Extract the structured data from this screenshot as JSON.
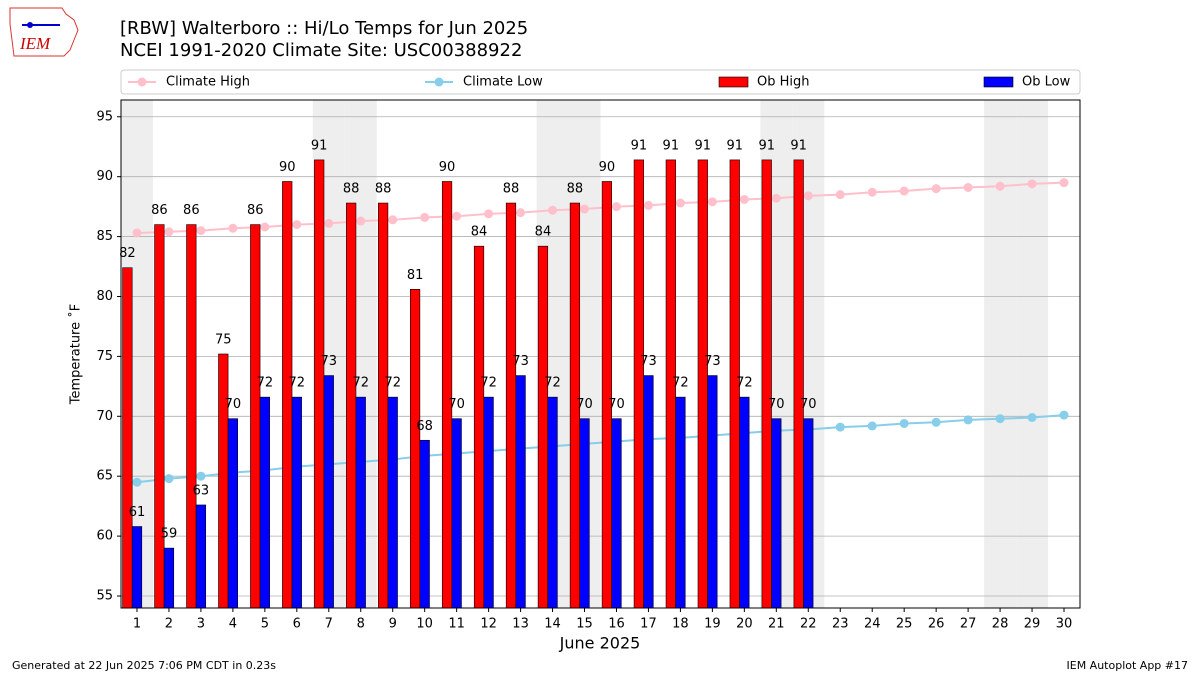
{
  "chart_data": {
    "type": "bar",
    "title": "[RBW] Walterboro :: Hi/Lo Temps for Jun 2025",
    "subtitle": "NCEI 1991-2020 Climate Site: USC00388922",
    "x_label": "June 2025",
    "y_label": "Temperature ˚F",
    "footer_left": "Generated at 22 Jun 2025 7:06 PM CDT in 0.23s",
    "footer_right": "IEM Autoplot App #17",
    "logo_text": "IEM",
    "x": [
      1,
      2,
      3,
      4,
      5,
      6,
      7,
      8,
      9,
      10,
      11,
      12,
      13,
      14,
      15,
      16,
      17,
      18,
      19,
      20,
      21,
      22,
      23,
      24,
      25,
      26,
      27,
      28,
      29,
      30
    ],
    "xlim": [
      0.5,
      30.5
    ],
    "xticks": [
      1,
      2,
      3,
      4,
      5,
      6,
      7,
      8,
      9,
      10,
      11,
      12,
      13,
      14,
      15,
      16,
      17,
      18,
      19,
      20,
      21,
      22,
      23,
      24,
      25,
      26,
      27,
      28,
      29,
      30
    ],
    "ylim": [
      54,
      96.4
    ],
    "yticks": [
      55,
      60,
      65,
      70,
      75,
      80,
      85,
      90,
      95
    ],
    "grid": true,
    "weekend_days": [
      1,
      7,
      8,
      14,
      15,
      21,
      22,
      28,
      29
    ],
    "weekend_color": "#eeeeee",
    "series": [
      {
        "name": "Climate High",
        "kind": "line",
        "color": "pink",
        "values": [
          85.3,
          85.4,
          85.5,
          85.7,
          85.8,
          86.0,
          86.1,
          86.3,
          86.4,
          86.6,
          86.7,
          86.9,
          87.0,
          87.2,
          87.3,
          87.5,
          87.6,
          87.8,
          87.9,
          88.1,
          88.2,
          88.4,
          88.5,
          88.7,
          88.8,
          89.0,
          89.1,
          89.2,
          89.4,
          89.5
        ]
      },
      {
        "name": "Climate Low",
        "kind": "line",
        "color": "skyblue",
        "values": [
          64.5,
          64.8,
          65.0,
          65.3,
          65.5,
          65.8,
          66.0,
          66.2,
          66.4,
          66.7,
          66.9,
          67.1,
          67.3,
          67.5,
          67.7,
          67.9,
          68.1,
          68.2,
          68.4,
          68.6,
          68.8,
          68.9,
          69.1,
          69.2,
          69.4,
          69.5,
          69.7,
          69.8,
          69.9,
          70.1
        ]
      },
      {
        "name": "Ob High",
        "kind": "bar",
        "color": "red",
        "values": [
          82.4,
          86.0,
          86.0,
          75.2,
          86.0,
          89.6,
          91.4,
          87.8,
          87.8,
          80.6,
          89.6,
          84.2,
          87.8,
          84.2,
          87.8,
          89.6,
          91.4,
          91.4,
          91.4,
          91.4,
          91.4,
          91.4,
          null,
          null,
          null,
          null,
          null,
          null,
          null,
          null
        ],
        "value_labels": [
          "82",
          "86",
          "86",
          "75",
          "86",
          "90",
          "91",
          "88",
          "88",
          "81",
          "90",
          "84",
          "88",
          "84",
          "88",
          "90",
          "91",
          "91",
          "91",
          "91",
          "91",
          "91",
          null,
          null,
          null,
          null,
          null,
          null,
          null,
          null
        ]
      },
      {
        "name": "Ob Low",
        "kind": "bar",
        "color": "blue",
        "values": [
          60.8,
          59.0,
          62.6,
          69.8,
          71.6,
          71.6,
          73.4,
          71.6,
          71.6,
          68.0,
          69.8,
          71.6,
          73.4,
          71.6,
          69.8,
          69.8,
          73.4,
          71.6,
          73.4,
          71.6,
          69.8,
          69.8,
          null,
          null,
          null,
          null,
          null,
          null,
          null,
          null
        ],
        "value_labels": [
          "61",
          "59",
          "63",
          "70",
          "72",
          "72",
          "73",
          "72",
          "72",
          "68",
          "70",
          "72",
          "73",
          "72",
          "70",
          "70",
          "73",
          "72",
          "73",
          "72",
          "70",
          "70",
          null,
          null,
          null,
          null,
          null,
          null,
          null,
          null
        ]
      }
    ]
  }
}
